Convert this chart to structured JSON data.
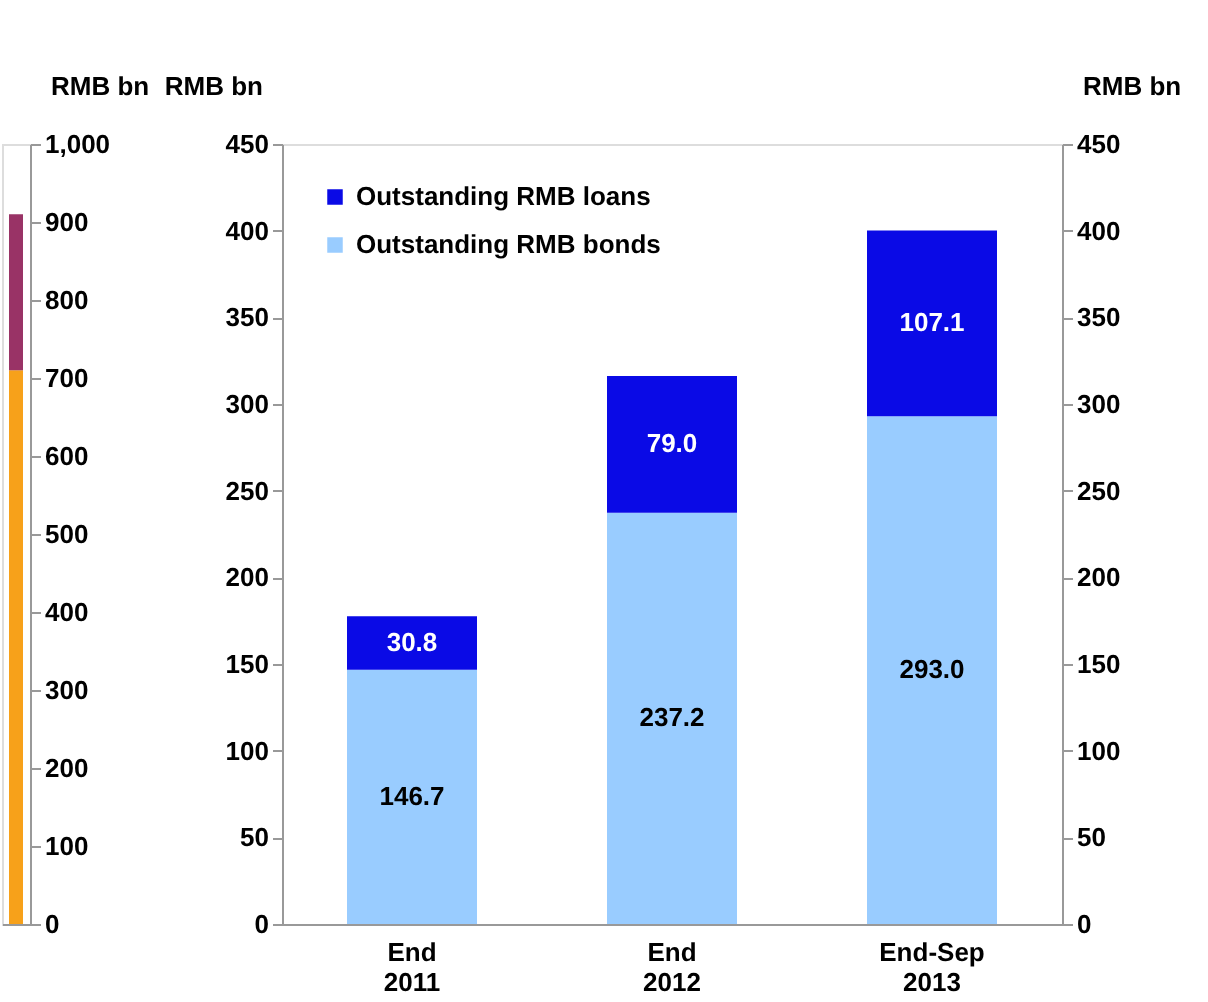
{
  "chart_data": [
    {
      "type": "bar",
      "stacked": true,
      "categories": [
        null
      ],
      "ylabel": "RMB bn",
      "ylim": [
        0,
        1000
      ],
      "yticks": [
        0,
        100,
        200,
        300,
        400,
        500,
        600,
        700,
        800,
        900,
        {
          "value": 1000,
          "label": "1,000"
        }
      ],
      "tick_labels": "y",
      "grid": false,
      "series": [
        {
          "color": "#f7a11a",
          "values": [
            710
          ]
        },
        {
          "color": "#993366",
          "values": [
            200
          ]
        }
      ]
    },
    {
      "type": "bar",
      "stacked": true,
      "categories": [
        "End 2011",
        "End 2012",
        "End-Sep 2013"
      ],
      "ylabel": "RMB bn",
      "y2label": "RMB bn",
      "ylim": [
        0,
        450
      ],
      "yticks": [
        0,
        50,
        100,
        150,
        200,
        250,
        300,
        350,
        400,
        450
      ],
      "y2lim": [
        0,
        450
      ],
      "y2ticks": [
        0,
        50,
        100,
        150,
        200,
        250,
        300,
        350,
        400,
        450
      ],
      "legend": "top left",
      "grid": false,
      "series": [
        {
          "name": "Outstanding RMB bonds",
          "color": "#99ccff",
          "values": [
            146.7,
            237.2,
            293.0
          ],
          "value_labels": [
            "146.7",
            "237.2",
            "293.0"
          ]
        },
        {
          "name": "Outstanding RMB loans",
          "color": "#0a0ae6",
          "values": [
            30.8,
            79.0,
            107.1
          ],
          "value_labels": [
            "30.8",
            "79.0",
            "107.1"
          ]
        }
      ]
    }
  ]
}
